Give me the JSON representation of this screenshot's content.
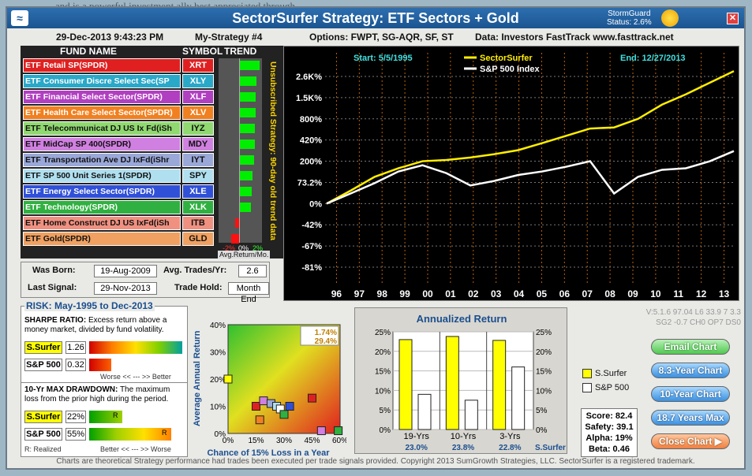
{
  "bg_text": "and is a powerful investment ally best appreciated through",
  "title": "SectorSurfer Strategy:  ETF Sectors + Gold",
  "stormguard": {
    "label": "StormGuard",
    "status": "Status: 2.6%"
  },
  "info": {
    "datetime": "29-Dec-2013  9:43:23 PM",
    "strategy": "My-Strategy #4",
    "options": "Options: FWPT, SG-AQR, SF, ST",
    "data": "Data: Investors FastTrack www.fasttrack.net"
  },
  "fund_headers": {
    "name": "FUND NAME",
    "symbol": "SYMBOL",
    "trend": "TREND"
  },
  "funds": [
    {
      "name": "ETF Retail SP(SPDR)",
      "symbol": "XRT",
      "color": "#e02020",
      "text": "#fff",
      "trend": 0.92,
      "positive": true
    },
    {
      "name": "ETF Consumer Discre Select Sec(SP",
      "symbol": "XLY",
      "color": "#2aa8c8",
      "text": "#fff",
      "trend": 0.78,
      "positive": true
    },
    {
      "name": "ETF Financial Select Sector(SPDR)",
      "symbol": "XLF",
      "color": "#b040c0",
      "text": "#fff",
      "trend": 0.75,
      "positive": true
    },
    {
      "name": "ETF Health Care Select Sector(SPDR)",
      "symbol": "XLV",
      "color": "#f08020",
      "text": "#fff",
      "trend": 0.74,
      "positive": true
    },
    {
      "name": "ETF Telecommunicat DJ US Ix Fd(iSh",
      "symbol": "IYZ",
      "color": "#90d870",
      "text": "#111",
      "trend": 0.72,
      "positive": true
    },
    {
      "name": "ETF MidCap SP 400(SPDR)",
      "symbol": "MDY",
      "color": "#d080e0",
      "text": "#111",
      "trend": 0.7,
      "positive": true
    },
    {
      "name": "ETF Transportation Ave DJ IxFd(iShr",
      "symbol": "IYT",
      "color": "#9aa8d8",
      "text": "#111",
      "trend": 0.68,
      "positive": true
    },
    {
      "name": "ETF SP 500 Unit Series 1(SPDR)",
      "symbol": "SPY",
      "color": "#b0e0f0",
      "text": "#111",
      "trend": 0.58,
      "positive": true
    },
    {
      "name": "ETF Energy Select Sector(SPDR)",
      "symbol": "XLE",
      "color": "#3050d8",
      "text": "#fff",
      "trend": 0.55,
      "positive": true
    },
    {
      "name": "ETF Technology(SPDR)",
      "symbol": "XLK",
      "color": "#30b040",
      "text": "#fff",
      "trend": 0.52,
      "positive": true
    },
    {
      "name": "ETF Home Construct DJ US IxFd(iSh",
      "symbol": "ITB",
      "color": "#f09080",
      "text": "#111",
      "trend": 0.28,
      "positive": false
    },
    {
      "name": "ETF Gold(SPDR)",
      "symbol": "GLD",
      "color": "#f0a060",
      "text": "#111",
      "trend": 0.6,
      "positive": false
    }
  ],
  "trend_axis": {
    "left": "-2%",
    "mid": "0%",
    "right": "2%",
    "caption": "Avg.Return/Mo."
  },
  "vertical_text": "Unsubscribed Strategy: 90-day old trend data",
  "chart_data": {
    "type": "line",
    "start_label": "Start: 5/5/1995",
    "end_label": "End: 12/27/2013",
    "legend": [
      "SectorSurfer",
      "S&P 500 Index"
    ],
    "y_ticks": [
      "2.6K%",
      "1.5K%",
      "800%",
      "420%",
      "200%",
      "73.2%",
      "0%",
      "-42%",
      "-67%",
      "-81%"
    ],
    "x_ticks": [
      "96",
      "97",
      "98",
      "99",
      "00",
      "01",
      "02",
      "03",
      "04",
      "05",
      "06",
      "07",
      "08",
      "09",
      "10",
      "11",
      "12",
      "13"
    ],
    "series": [
      {
        "name": "SectorSurfer",
        "color": "#ffee00",
        "values": [
          0,
          40,
          100,
          150,
          200,
          210,
          230,
          260,
          300,
          380,
          480,
          600,
          620,
          800,
          1200,
          1600,
          2200,
          3000
        ]
      },
      {
        "name": "S&P 500 Index",
        "color": "#ffffff",
        "values": [
          0,
          30,
          70,
          130,
          170,
          120,
          60,
          80,
          110,
          130,
          160,
          200,
          30,
          100,
          140,
          150,
          200,
          290
        ]
      }
    ]
  },
  "born": {
    "label": "Was Born:",
    "value": "19-Aug-2009"
  },
  "trades": {
    "label": "Avg. Trades/Yr:",
    "value": "2.6"
  },
  "last_signal": {
    "label": "Last Signal:",
    "value": "29-Nov-2013"
  },
  "hold": {
    "label": "Trade Hold:",
    "value": "Month End"
  },
  "risk": {
    "title": "RISK: May-1995  to  Dec-2013",
    "sharpe_title": "SHARPE RATIO:",
    "sharpe_desc": "Excess return above a money market, divided by fund volatility.",
    "sharpe_surfer_label": "S.Surfer",
    "sharpe_surfer": "1.26",
    "sharpe_sp_label": "S&P 500",
    "sharpe_sp": "0.32",
    "worse_better": "Worse  <<  ---  >>  Better",
    "dd_title": "10-Yr MAX DRAWDOWN:",
    "dd_desc": "The maximum loss from the prior high during the period.",
    "dd_surfer_label": "S.Surfer",
    "dd_surfer": "22%",
    "dd_sp_label": "S&P 500",
    "dd_sp": "55%",
    "realized": "R: Realized",
    "better_worse": "Better  <<  ---  >>  Worse",
    "r": "R"
  },
  "scatter": {
    "ylabel": "Average Annual Return",
    "xlabel": "Chance of 15% Loss in a Year",
    "y_ticks": [
      "40%",
      "30%",
      "20%",
      "10%",
      "0%"
    ],
    "x_ticks": [
      "0%",
      "15%",
      "30%",
      "45%",
      "60%"
    ],
    "legend": [
      "1.74%",
      "29.4%"
    ]
  },
  "annualized": {
    "title": "Annualized Return",
    "y_ticks": [
      "25%",
      "20%",
      "15%",
      "10%",
      "5%",
      "0%"
    ],
    "groups": [
      "19-Yrs",
      "10-Yrs",
      "3-Yrs"
    ],
    "surfer": [
      23.0,
      23.8,
      22.8
    ],
    "sp": [
      9.0,
      7.5,
      16.0
    ],
    "surfer_labels": [
      "23.0%",
      "23.8%",
      "22.8%"
    ],
    "series_label": "S.Surfer"
  },
  "legend2": {
    "surfer": "S.Surfer",
    "sp": "S&P 500"
  },
  "stats": {
    "score": "Score: 82.4",
    "safety": "Safety: 39.1",
    "alpha": "Alpha: 19%",
    "beta": "Beta: 0.46"
  },
  "buttons": {
    "email": "Email Chart",
    "b1": "8.3-Year Chart",
    "b2": "10-Year Chart",
    "b3": "18.7 Years Max",
    "close": "Close Chart  ▶"
  },
  "version": [
    "V:5.1.6  97.04  L6 33.9 7 3.3",
    "SG2 -0.7 CH0 OP7 DS0"
  ],
  "footer": "Charts are theoretical Strategy performance had trades been executed per trade signals provided.  Copyright 2013 SumGrowth Strategies, LLC.  SectorSurfer is a registered trademark."
}
